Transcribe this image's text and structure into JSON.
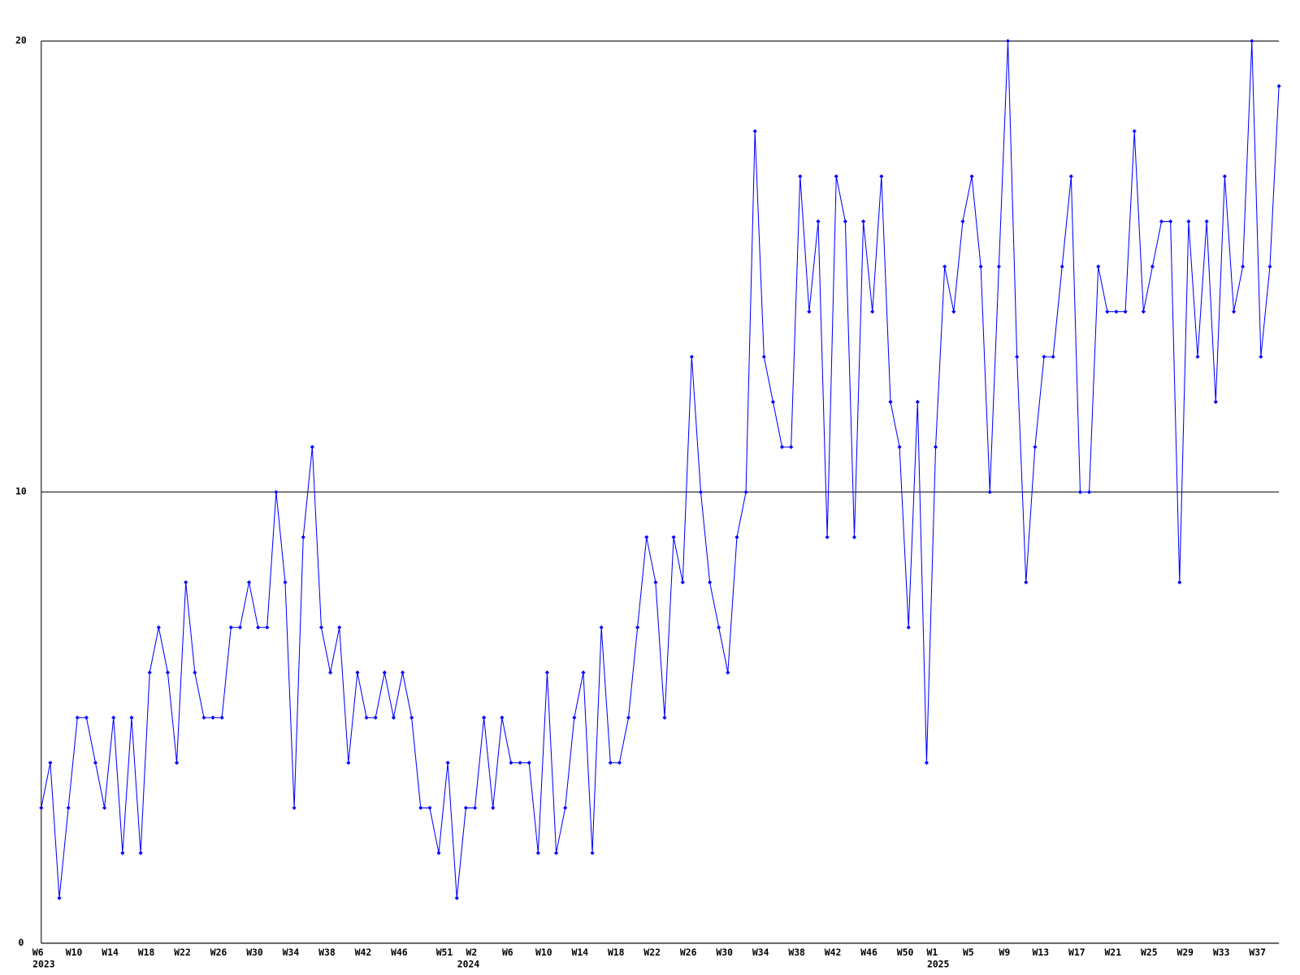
{
  "chart_data": {
    "type": "line",
    "categories": [
      "W6",
      null,
      null,
      null,
      "W10",
      null,
      null,
      null,
      "W14",
      null,
      null,
      null,
      "W18",
      null,
      null,
      null,
      "W22",
      null,
      null,
      null,
      "W26",
      null,
      null,
      null,
      "W30",
      null,
      null,
      null,
      "W34",
      null,
      null,
      null,
      "W38",
      null,
      null,
      null,
      "W42",
      null,
      null,
      null,
      "W46",
      null,
      null,
      null,
      null,
      "W51",
      null,
      null,
      "W2",
      null,
      null,
      null,
      "W6",
      null,
      null,
      null,
      "W10",
      null,
      null,
      null,
      "W14",
      null,
      null,
      null,
      "W18",
      null,
      null,
      null,
      "W22",
      null,
      null,
      null,
      "W26",
      null,
      null,
      null,
      "W30",
      null,
      null,
      null,
      "W34",
      null,
      null,
      null,
      "W38",
      null,
      null,
      null,
      "W42",
      null,
      null,
      null,
      "W46",
      null,
      null,
      null,
      "W50",
      null,
      null,
      "W1",
      null,
      null,
      null,
      "W5",
      null,
      null,
      null,
      "W9",
      null,
      null,
      null,
      "W13",
      null,
      null,
      null,
      "W17",
      null,
      null,
      null,
      "W21",
      null,
      null,
      null,
      "W25",
      null,
      null,
      null,
      "W29",
      null,
      null,
      null,
      "W33",
      null,
      null,
      null,
      "W37",
      null,
      null
    ],
    "x_groups": [
      {
        "label": "2023",
        "count": 47
      },
      {
        "label": "2024",
        "count": 52
      },
      {
        "label": "2025",
        "count": 39
      }
    ],
    "series": [
      {
        "color": "#0000ff",
        "values": [
          3,
          4,
          1,
          3,
          5,
          5,
          4,
          3,
          5,
          2,
          5,
          2,
          6,
          7,
          6,
          4,
          8,
          6,
          5,
          5,
          5,
          7,
          7,
          8,
          7,
          7,
          10,
          8,
          3,
          9,
          11,
          7,
          6,
          7,
          4,
          6,
          5,
          5,
          6,
          5,
          6,
          5,
          3,
          3,
          2,
          4,
          1,
          3,
          3,
          5,
          3,
          5,
          4,
          4,
          4,
          2,
          6,
          2,
          3,
          5,
          6,
          2,
          7,
          4,
          4,
          5,
          7,
          9,
          8,
          5,
          9,
          8,
          13,
          10,
          8,
          7,
          6,
          9,
          10,
          18,
          13,
          12,
          11,
          11,
          17,
          14,
          16,
          9,
          17,
          16,
          9,
          16,
          14,
          17,
          12,
          11,
          7,
          12,
          4,
          11,
          15,
          14,
          16,
          17,
          15,
          10,
          15,
          20,
          13,
          8,
          11,
          13,
          13,
          15,
          17,
          10,
          10,
          15,
          14,
          14,
          14,
          18,
          14,
          15,
          16,
          16,
          8,
          16,
          13,
          16,
          12,
          17,
          14,
          15,
          20,
          13,
          15,
          19
        ]
      }
    ],
    "ylim": [
      0,
      20
    ],
    "yticks": [
      0,
      10,
      20
    ],
    "grid": true
  }
}
